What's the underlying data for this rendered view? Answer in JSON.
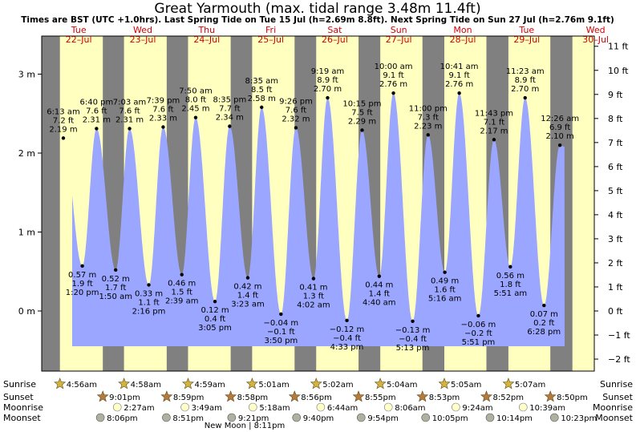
{
  "chart_data": {
    "type": "area",
    "title": "Great Yarmouth (max. tidal range 3.48m 11.4ft)",
    "subtitle": "Times are BST (UTC +1.0hrs). Last Spring Tide on Tue 15 Jul (h=2.69m 8.8ft). Next Spring Tide on Sun 27 Jul (h=2.76m 9.1ft)",
    "ylim_m": [
      -0.6,
      3.4
    ],
    "y_ticks_left": [
      "0 m",
      "1 m",
      "2 m",
      "3 m"
    ],
    "y_ticks_right": [
      "−2 ft",
      "−1 ft",
      "0 ft",
      "1 ft",
      "2 ft",
      "3 ft",
      "4 ft",
      "5 ft",
      "6 ft",
      "7 ft",
      "8 ft",
      "9 ft",
      "10 ft",
      "11 ft"
    ],
    "days": [
      {
        "dow": "Tue",
        "date": "22–Jul"
      },
      {
        "dow": "Wed",
        "date": "23–Jul"
      },
      {
        "dow": "Thu",
        "date": "24–Jul"
      },
      {
        "dow": "Fri",
        "date": "25–Jul"
      },
      {
        "dow": "Sat",
        "date": "26–Jul"
      },
      {
        "dow": "Sun",
        "date": "27–Jul"
      },
      {
        "dow": "Mon",
        "date": "28–Jul"
      },
      {
        "dow": "Tue",
        "date": "29–Jul"
      },
      {
        "dow": "Wed",
        "date": "30–Jul"
      }
    ],
    "tides": [
      {
        "type": "high",
        "day": 0,
        "time": "6:13 am",
        "m": 2.19,
        "ft": "7.2 ft"
      },
      {
        "type": "low",
        "day": 0,
        "time": "1:20 pm",
        "m": 0.57,
        "ft": "1.9 ft"
      },
      {
        "type": "high",
        "day": 0,
        "time": "6:40 pm",
        "m": 2.31,
        "ft": "7.6 ft"
      },
      {
        "type": "low",
        "day": 1,
        "time": "1:50 am",
        "m": 0.52,
        "ft": "1.7 ft"
      },
      {
        "type": "high",
        "day": 1,
        "time": "7:03 am",
        "m": 2.31,
        "ft": "7.6 ft"
      },
      {
        "type": "low",
        "day": 1,
        "time": "2:16 pm",
        "m": 0.33,
        "ft": "1.1 ft"
      },
      {
        "type": "high",
        "day": 1,
        "time": "7:39 pm",
        "m": 2.33,
        "ft": "7.6 ft"
      },
      {
        "type": "low",
        "day": 2,
        "time": "2:39 am",
        "m": 0.46,
        "ft": "1.5 ft"
      },
      {
        "type": "high",
        "day": 2,
        "time": "7:50 am",
        "m": 2.45,
        "ft": "8.0 ft"
      },
      {
        "type": "low",
        "day": 2,
        "time": "3:05 pm",
        "m": 0.12,
        "ft": "0.4 ft"
      },
      {
        "type": "high",
        "day": 2,
        "time": "8:35 pm",
        "m": 2.34,
        "ft": "7.7 ft"
      },
      {
        "type": "low",
        "day": 3,
        "time": "3:23 am",
        "m": 0.42,
        "ft": "1.4 ft"
      },
      {
        "type": "high",
        "day": 3,
        "time": "8:35 am",
        "m": 2.58,
        "ft": "8.5 ft"
      },
      {
        "type": "low",
        "day": 3,
        "time": "3:50 pm",
        "m": -0.04,
        "ft": "−0.1 ft"
      },
      {
        "type": "high",
        "day": 3,
        "time": "9:26 pm",
        "m": 2.32,
        "ft": "7.6 ft"
      },
      {
        "type": "low",
        "day": 4,
        "time": "4:02 am",
        "m": 0.41,
        "ft": "1.3 ft"
      },
      {
        "type": "high",
        "day": 4,
        "time": "9:19 am",
        "m": 2.7,
        "ft": "8.9 ft"
      },
      {
        "type": "low",
        "day": 4,
        "time": "4:33 pm",
        "m": -0.12,
        "ft": "−0.4 ft"
      },
      {
        "type": "high",
        "day": 4,
        "time": "10:15 pm",
        "m": 2.29,
        "ft": "7.5 ft"
      },
      {
        "type": "low",
        "day": 5,
        "time": "4:40 am",
        "m": 0.44,
        "ft": "1.4 ft"
      },
      {
        "type": "high",
        "day": 5,
        "time": "10:00 am",
        "m": 2.76,
        "ft": "9.1 ft"
      },
      {
        "type": "low",
        "day": 5,
        "time": "5:13 pm",
        "m": -0.13,
        "ft": "−0.4 ft"
      },
      {
        "type": "high",
        "day": 5,
        "time": "11:00 pm",
        "m": 2.23,
        "ft": "7.3 ft"
      },
      {
        "type": "low",
        "day": 6,
        "time": "5:16 am",
        "m": 0.49,
        "ft": "1.6 ft"
      },
      {
        "type": "high",
        "day": 6,
        "time": "10:41 am",
        "m": 2.76,
        "ft": "9.1 ft"
      },
      {
        "type": "low",
        "day": 6,
        "time": "5:51 pm",
        "m": -0.06,
        "ft": "−0.2 ft"
      },
      {
        "type": "high",
        "day": 6,
        "time": "11:43 pm",
        "m": 2.17,
        "ft": "7.1 ft"
      },
      {
        "type": "low",
        "day": 7,
        "time": "5:51 am",
        "m": 0.56,
        "ft": "1.8 ft"
      },
      {
        "type": "high",
        "day": 7,
        "time": "11:23 am",
        "m": 2.7,
        "ft": "8.9 ft"
      },
      {
        "type": "low",
        "day": 7,
        "time": "6:28 pm",
        "m": 0.07,
        "ft": "0.2 ft"
      },
      {
        "type": "high",
        "day": 8,
        "time": "12:26 am",
        "m": 2.1,
        "ft": "6.9 ft"
      }
    ],
    "rows": [
      "Sunrise",
      "Sunset",
      "Moonrise",
      "Moonset"
    ],
    "sunrise": [
      "4:56am",
      "4:58am",
      "4:59am",
      "5:01am",
      "5:02am",
      "5:04am",
      "5:05am",
      "5:07am"
    ],
    "sunset": [
      "9:01pm",
      "8:59pm",
      "8:58pm",
      "8:56pm",
      "8:55pm",
      "8:53pm",
      "8:52pm",
      "8:50pm"
    ],
    "moonrise": [
      "2:27am",
      "3:49am",
      "5:18am",
      "6:44am",
      "8:06am",
      "9:24am",
      "10:39am"
    ],
    "moonset": [
      "8:06pm",
      "8:51pm",
      "9:21pm",
      "9:40pm",
      "9:54pm",
      "10:05pm",
      "10:14pm",
      "10:23pm"
    ],
    "new_moon": "New Moon | 8:11pm",
    "colors": {
      "water": "#9aa6ff",
      "day": "#ffffc0",
      "night": "#808080",
      "day_label": "#d40000",
      "sun": "#d4b43a",
      "sunset": "#b87a3a",
      "moon": "#ffffc8",
      "moonset": "#b0b0a0"
    }
  }
}
